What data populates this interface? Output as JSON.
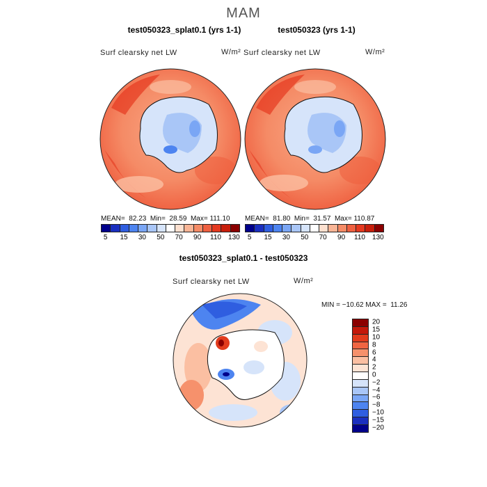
{
  "season": "MAM",
  "panel1": {
    "title": "test050323_splat0.1 (yrs 1-1)",
    "variable": "Surf clearsky net LW",
    "units": "W/m²",
    "stats": "MEAN=  82.23  Min=  28.59  Max= 111.10"
  },
  "panel2": {
    "title": "test050323 (yrs 1-1)",
    "variable": "Surf clearsky net LW",
    "units": "W/m²",
    "stats": "MEAN=  81.80  Min=  31.57  Max= 110.87"
  },
  "panel3": {
    "title": "test050323_splat0.1 - test050323",
    "variable": "Surf clearsky net LW",
    "units": "W/m²",
    "stats": "MIN = −10.62 MAX =  11.26"
  },
  "colorbar_top": {
    "colors": [
      "#00008b",
      "#1a2fbf",
      "#2f5ee0",
      "#4d84f0",
      "#7aa6f5",
      "#a9c6f7",
      "#d6e4fa",
      "#ffffff",
      "#fde0cf",
      "#f9b596",
      "#f58b66",
      "#ef6040",
      "#e5391f",
      "#c81e0b",
      "#8b0000"
    ],
    "labels": [
      "5",
      "15",
      "30",
      "50",
      "70",
      "90",
      "110",
      "130"
    ]
  },
  "colorbar_diff": {
    "colors": [
      "#8b0000",
      "#c4180a",
      "#e23b1c",
      "#f06542",
      "#f6916c",
      "#fbbfa2",
      "#fde3d4",
      "#ffffff",
      "#d6e4fa",
      "#a9c6f7",
      "#7aa6f5",
      "#4d84f0",
      "#2f5ee0",
      "#1a2fbf",
      "#00008b"
    ],
    "labels": [
      "20",
      "15",
      "10",
      "8",
      "6",
      "4",
      "2",
      "0",
      "−2",
      "−4",
      "−6",
      "−8",
      "−10",
      "−15",
      "−20"
    ]
  }
}
